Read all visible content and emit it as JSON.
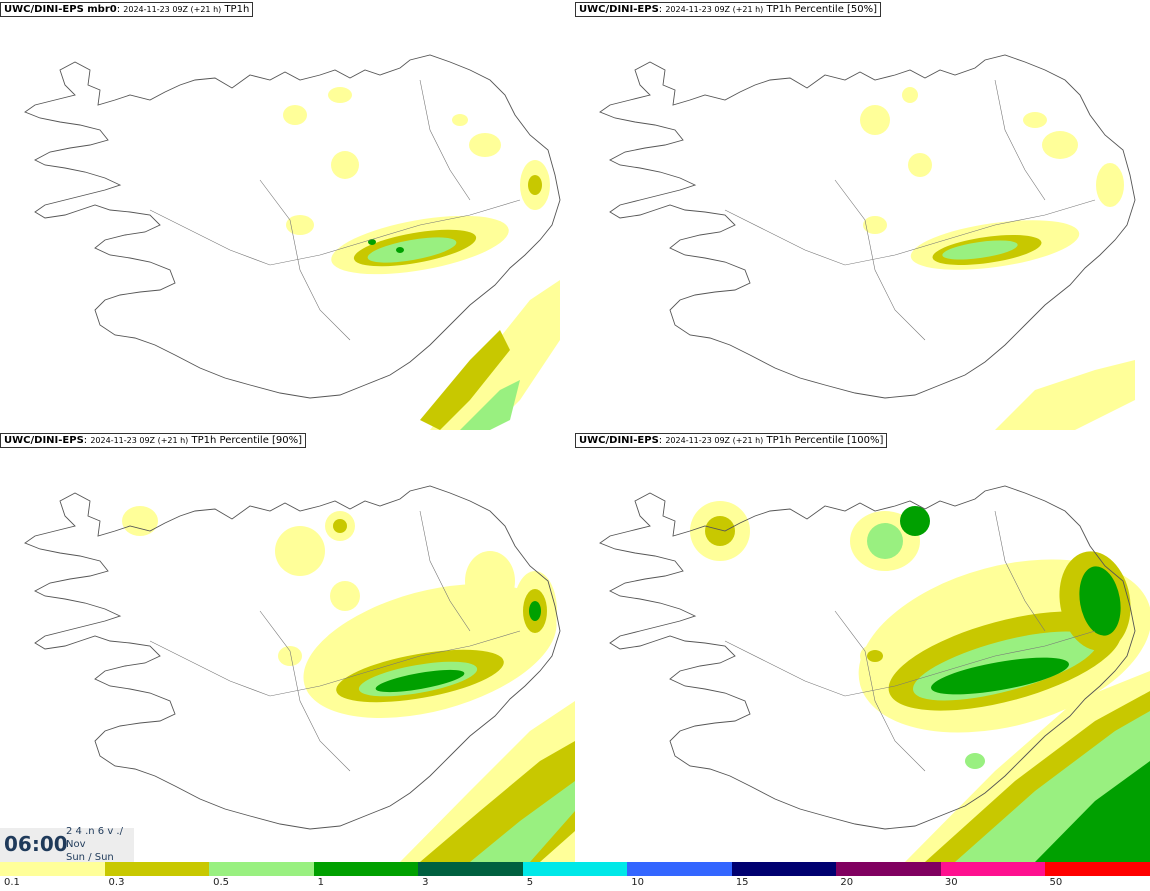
{
  "panels": [
    {
      "model": "UWC/DINI-EPS mbr0",
      "meta": "2024-11-23 09Z (+21 h)",
      "param": "TP1h"
    },
    {
      "model": "UWC/DINI-EPS",
      "meta": "2024-11-23 09Z (+21 h)",
      "param": "TP1h Percentile [50%]"
    },
    {
      "model": "UWC/DINI-EPS",
      "meta": "2024-11-23 09Z (+21 h)",
      "param": "TP1h Percentile [90%]"
    },
    {
      "model": "UWC/DINI-EPS",
      "meta": "2024-11-23 09Z (+21 h)",
      "param": "TP1h Percentile [100%]"
    }
  ],
  "clock": {
    "time": "06:00",
    "date_line": "2 4 .n 6 v ./",
    "month": "Nov",
    "weekday": "Sun / Sun"
  },
  "colorbar": {
    "labels": [
      "0.1",
      "0.3",
      "0.5",
      "1",
      "3",
      "5",
      "10",
      "15",
      "20",
      "30",
      "50"
    ],
    "colors": [
      "#ffff99",
      "#c8c800",
      "#99f080",
      "#00a000",
      "#006040",
      "#00e8e8",
      "#3366ff",
      "#000070",
      "#800060",
      "#ff1090",
      "#ff0000"
    ]
  },
  "legend_colors": {
    "light": "#ffff99",
    "olive": "#c8c800",
    "lightgreen": "#99f080",
    "green": "#00a000",
    "darkgreen": "#006040"
  }
}
